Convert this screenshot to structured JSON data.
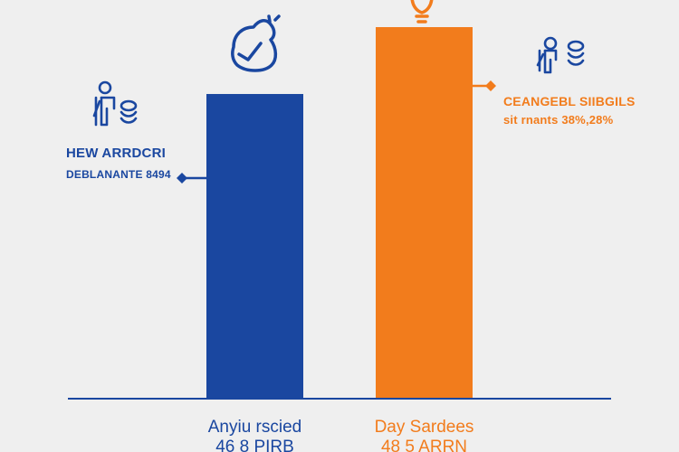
{
  "colors": {
    "background": "#efefef",
    "blue": "#1a47a0",
    "orange": "#f27c1c",
    "baseline": "#1a47a0"
  },
  "chart_data": {
    "type": "bar",
    "title": "",
    "xlabel": "",
    "ylabel": "",
    "ylim": [
      0,
      1
    ],
    "categories": [
      "Anyiu rscied",
      "Day Sardees"
    ],
    "category_values_text": [
      "46 8 PIRB",
      "48 5 ARRN"
    ],
    "values": [
      0.82,
      1.0
    ],
    "bar_colors": [
      "#1a47a0",
      "#f27c1c"
    ],
    "grid": false,
    "legend": "none"
  },
  "annotations": {
    "left": {
      "title": "HEW ARRDCRI",
      "subtitle": "DEBLANANTE 8494",
      "icon": "person-coins-icon",
      "bar_icon": "piggy-bank-icon"
    },
    "right": {
      "title": "CEANGEBL SIIBGILS",
      "subtitle": "sit rnants 38%,28%",
      "icon": "person-coins-icon",
      "bar_icon": "lightbulb-icon"
    }
  }
}
